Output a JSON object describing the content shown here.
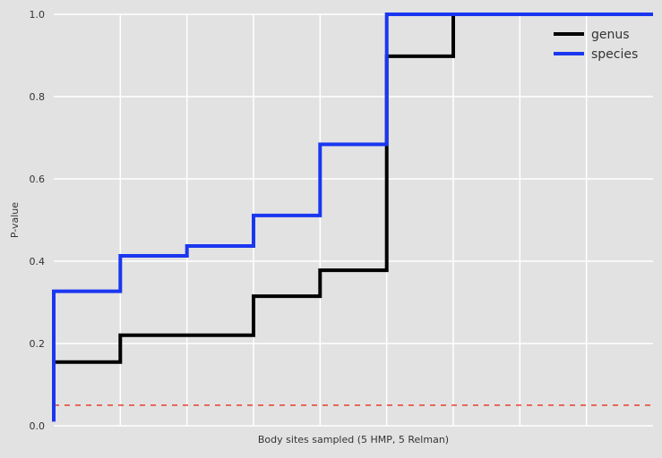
{
  "chart_data": {
    "type": "line",
    "step": true,
    "title": "",
    "xlabel": "Body sites sampled (5 HMP, 5 Relman)",
    "ylabel": "P-value",
    "xlim": [
      0,
      9
    ],
    "ylim": [
      0,
      1.0
    ],
    "x_ticks_labeled": false,
    "x_gridlines": [
      1,
      2,
      3,
      4,
      5,
      6,
      7,
      8
    ],
    "y_ticks": [
      "0.0",
      "0.2",
      "0.4",
      "0.6",
      "0.8",
      "1.0"
    ],
    "y_tick_values": [
      0.0,
      0.2,
      0.4,
      0.6,
      0.8,
      1.0
    ],
    "grid": true,
    "legend_position": "top-right",
    "reference_line": {
      "y": 0.05,
      "style": "dashed",
      "color": "#e8402e"
    },
    "series": [
      {
        "name": "genus",
        "color": "#000000",
        "points": [
          [
            0,
            0.1
          ],
          [
            0,
            0.155
          ],
          [
            1,
            0.155
          ],
          [
            1,
            0.22
          ],
          [
            3,
            0.22
          ],
          [
            3,
            0.315
          ],
          [
            4,
            0.315
          ],
          [
            4,
            0.378
          ],
          [
            5,
            0.378
          ],
          [
            5,
            0.898
          ],
          [
            6,
            0.898
          ],
          [
            6,
            1.0
          ],
          [
            9,
            1.0
          ]
        ]
      },
      {
        "name": "species",
        "color": "#1a37f0",
        "points": [
          [
            0,
            0.01
          ],
          [
            0,
            0.327
          ],
          [
            1,
            0.327
          ],
          [
            1,
            0.413
          ],
          [
            2,
            0.413
          ],
          [
            2,
            0.437
          ],
          [
            3,
            0.437
          ],
          [
            3,
            0.511
          ],
          [
            4,
            0.511
          ],
          [
            4,
            0.684
          ],
          [
            5,
            0.684
          ],
          [
            5,
            1.0
          ],
          [
            9,
            1.0
          ]
        ]
      }
    ]
  }
}
